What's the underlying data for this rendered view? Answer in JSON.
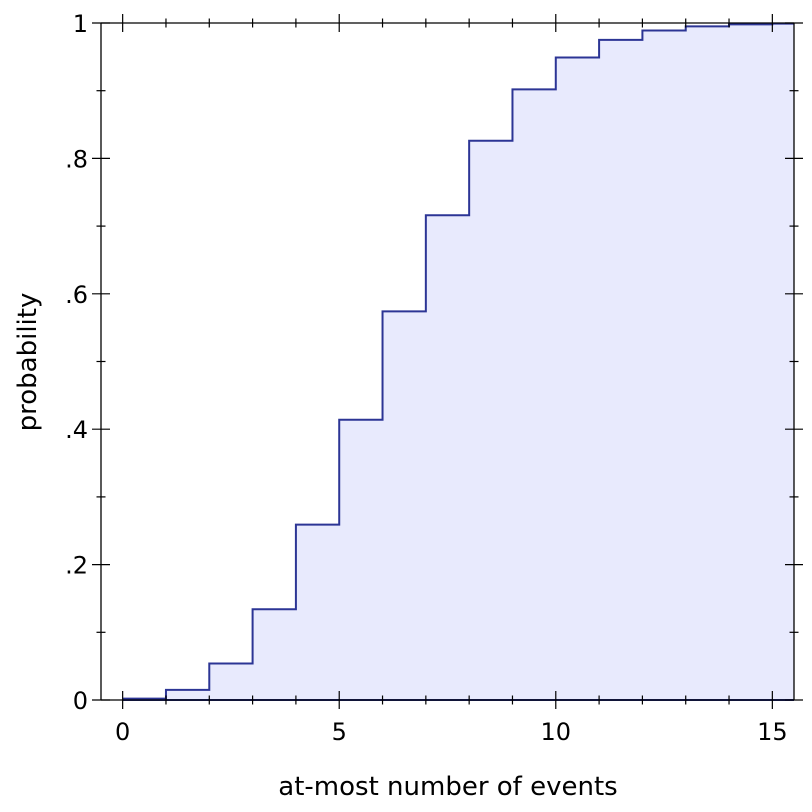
{
  "chart_data": {
    "type": "area",
    "step": "post",
    "x": [
      0,
      1,
      2,
      3,
      4,
      5,
      6,
      7,
      8,
      9,
      10,
      11,
      12,
      13,
      14,
      15
    ],
    "values": [
      0.002,
      0.015,
      0.054,
      0.134,
      0.259,
      0.414,
      0.574,
      0.716,
      0.826,
      0.902,
      0.949,
      0.975,
      0.989,
      0.995,
      0.998,
      0.999
    ],
    "xlabel": "at-most number of events",
    "ylabel": "probability",
    "xlim": [
      -0.5,
      15.5
    ],
    "ylim": [
      0,
      1
    ],
    "x_ticks": [
      0,
      5,
      10,
      15
    ],
    "x_tick_labels": [
      "0",
      "5",
      "10",
      "15"
    ],
    "y_ticks": [
      0,
      0.2,
      0.4,
      0.6,
      0.8,
      1
    ],
    "y_tick_labels": [
      "0",
      ".2",
      ".4",
      ".6",
      ".8",
      "1"
    ],
    "grid": false,
    "line_color": "#2c3595",
    "fill_color": "#e8eafd"
  }
}
